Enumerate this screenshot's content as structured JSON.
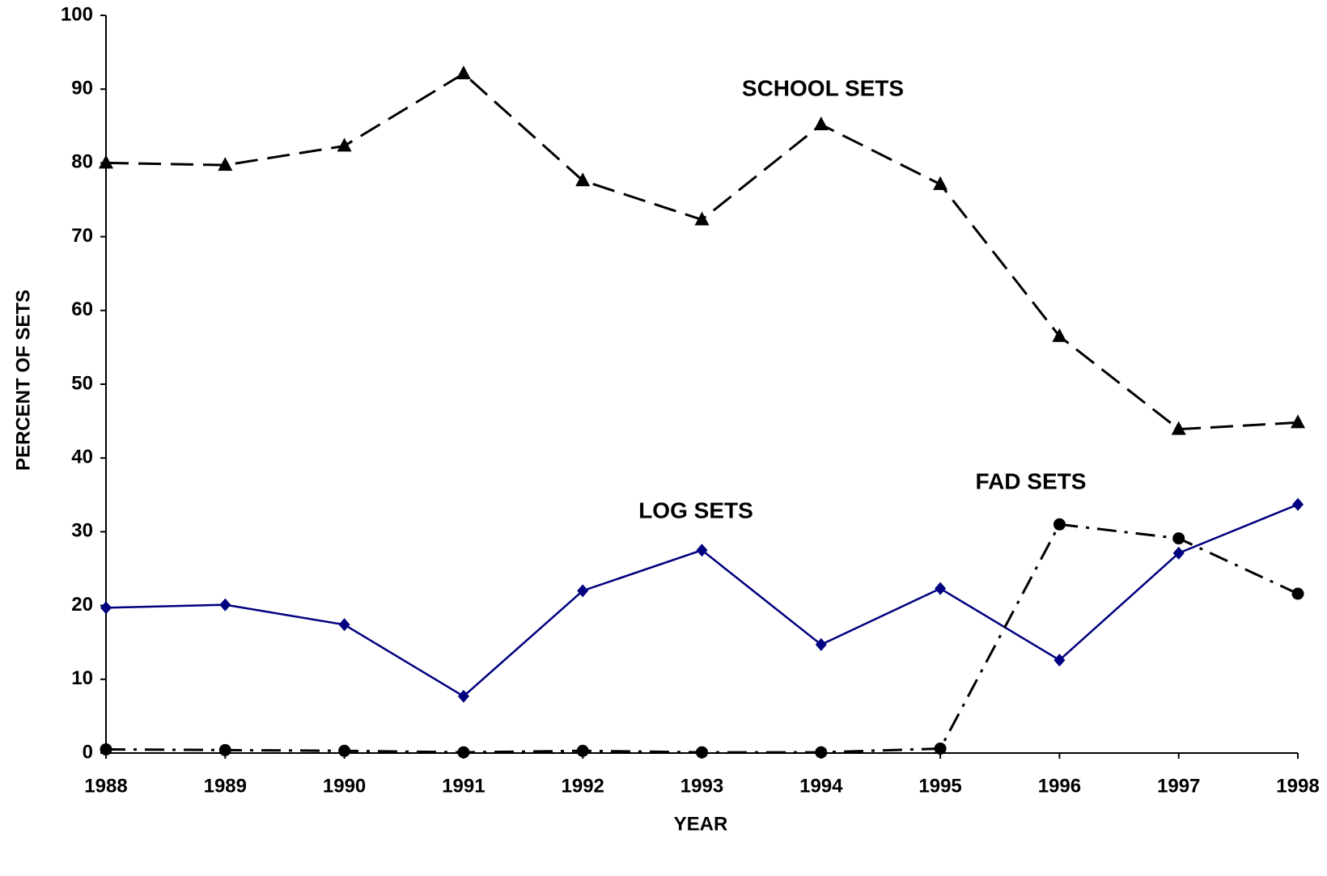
{
  "chart_data": {
    "type": "line",
    "x_label": "YEAR",
    "y_label": "PERCENT OF SETS",
    "x": [
      1988,
      1989,
      1990,
      1991,
      1992,
      1993,
      1994,
      1995,
      1996,
      1997,
      1998
    ],
    "xlim": [
      1988,
      1998
    ],
    "xticks": [
      1988,
      1989,
      1990,
      1991,
      1992,
      1993,
      1994,
      1995,
      1996,
      1997,
      1998
    ],
    "ylim": [
      0,
      100
    ],
    "yticks": [
      0,
      10,
      20,
      30,
      40,
      50,
      60,
      70,
      80,
      90,
      100
    ],
    "grid": false,
    "series": [
      {
        "name": "SCHOOL SETS",
        "color": "#000000",
        "style": "dashed",
        "marker": "triangle",
        "values": [
          80,
          79.7,
          82.3,
          92.1,
          77.6,
          72.3,
          85.2,
          77.1,
          56.5,
          43.9,
          44.8
        ]
      },
      {
        "name": "LOG SETS",
        "color": "#000080",
        "style": "solid",
        "marker": "diamond",
        "values": [
          19.7,
          20.1,
          17.4,
          7.7,
          22.0,
          27.5,
          14.7,
          22.3,
          12.6,
          27.1,
          33.7
        ]
      },
      {
        "name": "FAD SETS",
        "color": "#000000",
        "style": "dashdot",
        "marker": "circle",
        "values": [
          0.5,
          0.4,
          0.3,
          0.1,
          0.3,
          0.1,
          0.1,
          0.6,
          31.0,
          29.1,
          21.6
        ]
      }
    ]
  }
}
